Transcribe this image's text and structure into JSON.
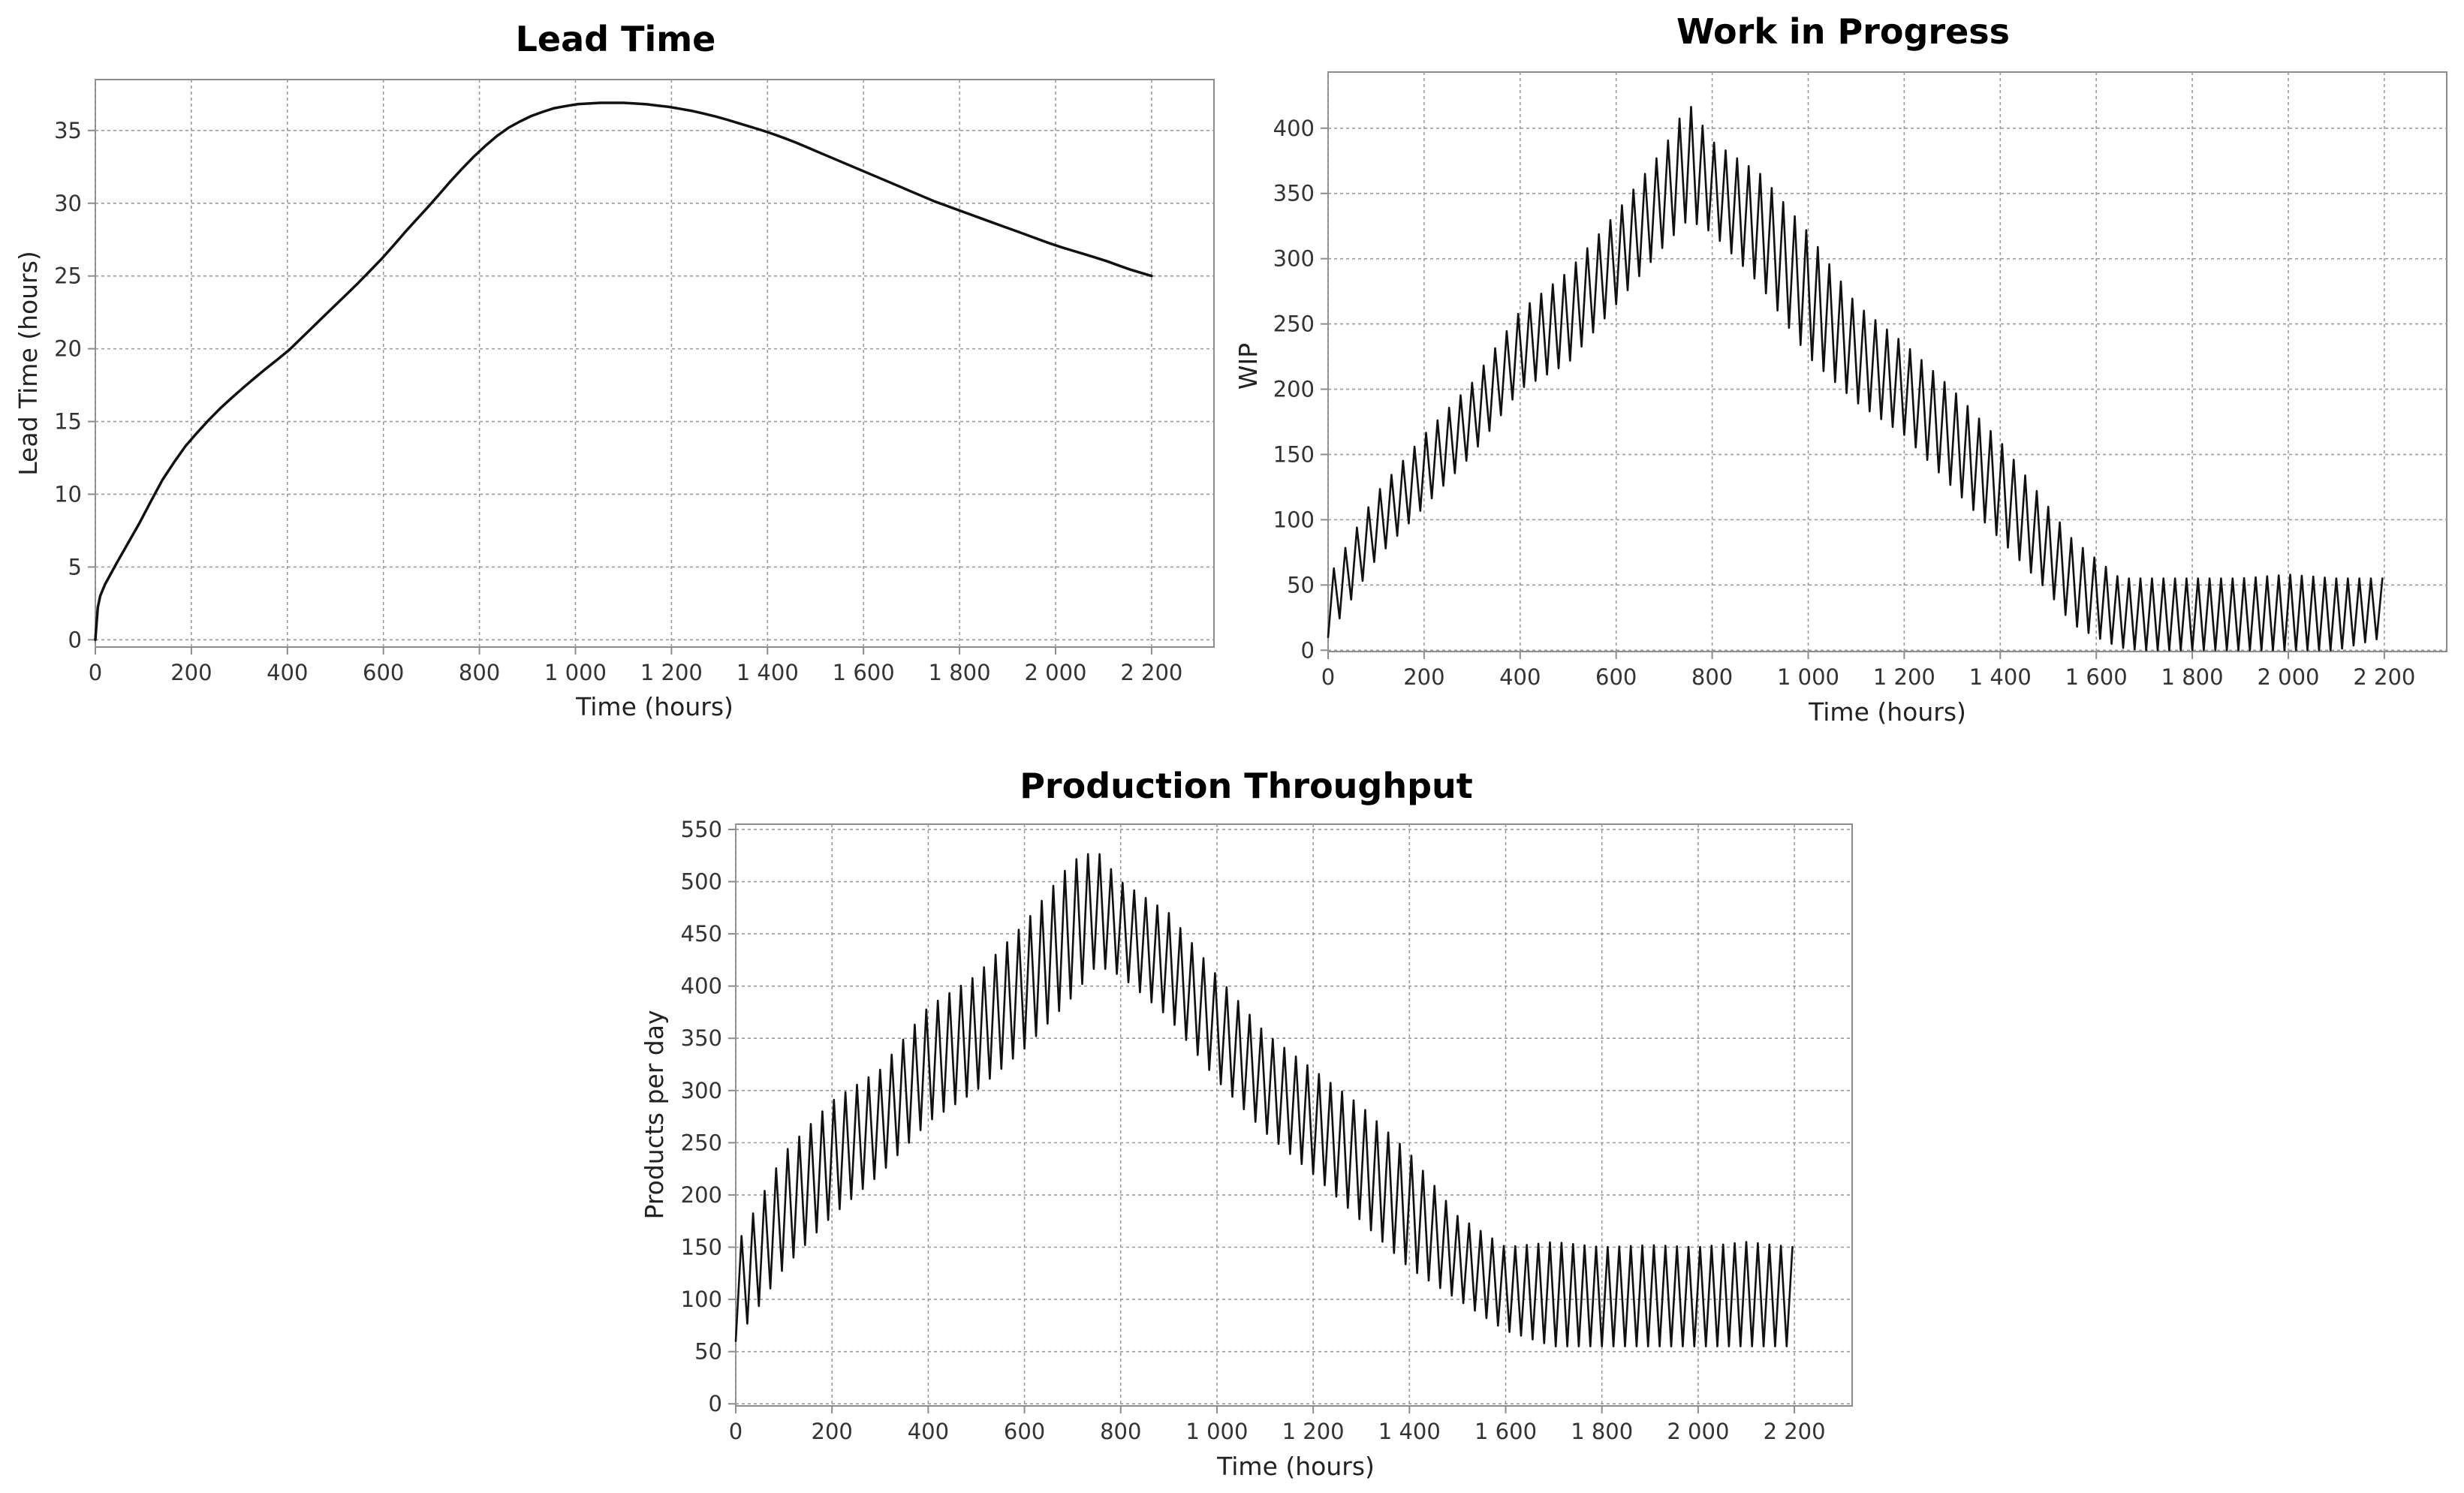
{
  "chart_data": [
    {
      "id": "lead-time",
      "type": "line",
      "title": "Lead Time",
      "xlabel": "Time (hours)",
      "ylabel": "Lead Time (hours)",
      "xlim": [
        0,
        2330
      ],
      "ylim": [
        -0.5,
        38.5
      ],
      "xticks": [
        0,
        200,
        400,
        600,
        800,
        1000,
        1200,
        1400,
        1600,
        1800,
        2000,
        2200
      ],
      "xtick_labels": [
        "0",
        "200",
        "400",
        "600",
        "800",
        "1 000",
        "1 200",
        "1 400",
        "1 600",
        "1 800",
        "2 000",
        "2 200"
      ],
      "yticks": [
        0,
        5,
        10,
        15,
        20,
        25,
        30,
        35
      ],
      "ytick_labels": [
        "0",
        "5",
        "10",
        "15",
        "20",
        "25",
        "30",
        "35"
      ],
      "grid": true,
      "color": "#111111",
      "series": [
        {
          "name": "Lead Time",
          "x": [
            0,
            5,
            10,
            20,
            40,
            60,
            80,
            100,
            120,
            140,
            160,
            180,
            200,
            250,
            300,
            350,
            400,
            450,
            500,
            550,
            600,
            650,
            700,
            750,
            800,
            850,
            900,
            950,
            1000,
            1050,
            1100,
            1150,
            1200,
            1250,
            1300,
            1350,
            1400,
            1450,
            1500,
            1550,
            1600,
            1650,
            1700,
            1750,
            1800,
            1850,
            1900,
            1950,
            2000,
            2050,
            2100,
            2150,
            2200
          ],
          "values": [
            0,
            2.2,
            3.0,
            3.8,
            5.0,
            6.2,
            7.3,
            8.5,
            9.8,
            11.0,
            12.0,
            13.0,
            13.8,
            15.6,
            17.1,
            18.5,
            19.8,
            21.4,
            23.0,
            24.6,
            26.3,
            28.2,
            30.0,
            31.9,
            33.6,
            35.0,
            35.9,
            36.5,
            36.8,
            36.9,
            36.9,
            36.8,
            36.6,
            36.3,
            35.9,
            35.4,
            34.9,
            34.3,
            33.6,
            32.9,
            32.2,
            31.5,
            30.8,
            30.1,
            29.5,
            28.9,
            28.3,
            27.7,
            27.1,
            26.6,
            26.1,
            25.5,
            25.0
          ]
        }
      ]
    },
    {
      "id": "wip",
      "type": "line",
      "title": "Work in Progress",
      "xlabel": "Time (hours)",
      "ylabel": "WIP",
      "xlim": [
        0,
        2330
      ],
      "ylim": [
        -1,
        443
      ],
      "xticks": [
        0,
        200,
        400,
        600,
        800,
        1000,
        1200,
        1400,
        1600,
        1800,
        2000,
        2200
      ],
      "xtick_labels": [
        "0",
        "200",
        "400",
        "600",
        "800",
        "1 000",
        "1 200",
        "1 400",
        "1 600",
        "1 800",
        "2 000",
        "2 200"
      ],
      "yticks": [
        0,
        50,
        100,
        150,
        200,
        250,
        300,
        350,
        400
      ],
      "ytick_labels": [
        "0",
        "50",
        "100",
        "150",
        "200",
        "250",
        "300",
        "350",
        "400"
      ],
      "grid": true,
      "color": "#111111",
      "oscillation_period_hours": 24,
      "series": [
        {
          "name": "WIP upper envelope",
          "x": [
            0,
            100,
            200,
            300,
            400,
            500,
            600,
            700,
            750,
            800,
            900,
            1000,
            1100,
            1200,
            1300,
            1400,
            1500,
            1550,
            1600,
            1650,
            1700,
            1800,
            1900,
            2000,
            2100,
            2200
          ],
          "values": [
            55,
            120,
            165,
            205,
            260,
            290,
            335,
            385,
            420,
            390,
            365,
            320,
            265,
            235,
            200,
            160,
            110,
            85,
            70,
            55,
            55,
            55,
            55,
            58,
            55,
            55
          ]
        },
        {
          "name": "WIP lower envelope",
          "x": [
            0,
            100,
            200,
            300,
            400,
            500,
            600,
            700,
            750,
            800,
            900,
            1000,
            1100,
            1200,
            1300,
            1400,
            1500,
            1550,
            1600,
            1650,
            1700,
            1800,
            1900,
            2000,
            2100,
            2200
          ],
          "values": [
            10,
            70,
            110,
            150,
            200,
            220,
            265,
            310,
            330,
            320,
            280,
            225,
            190,
            165,
            125,
            85,
            45,
            20,
            10,
            2,
            0,
            0,
            0,
            0,
            0,
            10
          ]
        }
      ]
    },
    {
      "id": "throughput",
      "type": "line",
      "title": "Production Throughput",
      "xlabel": "Time (hours)",
      "ylabel": "Products per day",
      "xlim": [
        0,
        2320
      ],
      "ylim": [
        -2,
        555
      ],
      "xticks": [
        0,
        200,
        400,
        600,
        800,
        1000,
        1200,
        1400,
        1600,
        1800,
        2000,
        2200
      ],
      "xtick_labels": [
        "0",
        "200",
        "400",
        "600",
        "800",
        "1 000",
        "1 200",
        "1 400",
        "1 600",
        "1 800",
        "2 000",
        "2 200"
      ],
      "yticks": [
        0,
        50,
        100,
        150,
        200,
        250,
        300,
        350,
        400,
        450,
        500,
        550
      ],
      "ytick_labels": [
        "0",
        "50",
        "100",
        "150",
        "200",
        "250",
        "300",
        "350",
        "400",
        "450",
        "500",
        "550"
      ],
      "grid": true,
      "color": "#111111",
      "oscillation_period_hours": 24,
      "series": [
        {
          "name": "Throughput upper envelope",
          "x": [
            0,
            100,
            200,
            300,
            400,
            500,
            600,
            700,
            750,
            800,
            900,
            1000,
            1100,
            1200,
            1300,
            1400,
            1500,
            1600,
            1700,
            1800,
            1900,
            2000,
            2100,
            2200
          ],
          "values": [
            150,
            240,
            290,
            320,
            380,
            410,
            460,
            520,
            530,
            500,
            470,
            410,
            355,
            320,
            285,
            240,
            180,
            150,
            155,
            150,
            152,
            150,
            155,
            150
          ]
        },
        {
          "name": "Throughput lower envelope",
          "x": [
            0,
            100,
            200,
            300,
            400,
            500,
            600,
            700,
            750,
            800,
            900,
            1000,
            1100,
            1200,
            1300,
            1400,
            1500,
            1600,
            1700,
            1800,
            1900,
            2000,
            2100,
            2200
          ],
          "values": [
            60,
            130,
            180,
            220,
            270,
            300,
            340,
            390,
            420,
            410,
            370,
            310,
            260,
            220,
            175,
            130,
            100,
            70,
            55,
            55,
            55,
            55,
            55,
            55
          ]
        }
      ]
    }
  ]
}
